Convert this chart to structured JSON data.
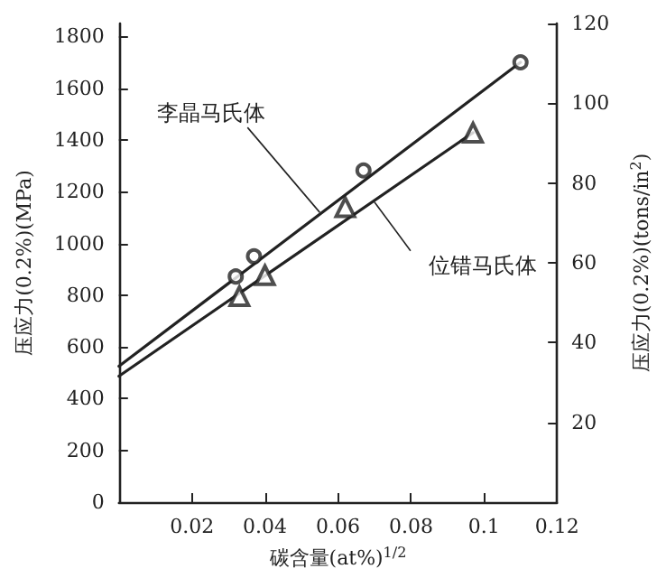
{
  "chart_data": {
    "type": "scatter",
    "xlabel": "碳含量(at%)$^{1/2}$",
    "ylabel": "压应力(0.2%)(MPa)",
    "y2label": "压应力(0.2%)(tons/in$^{2}$)",
    "xlim": [
      0,
      0.12
    ],
    "xticks": [
      0.02,
      0.04,
      0.06,
      0.08,
      0.1,
      0.12
    ],
    "ylim": [
      0,
      1850
    ],
    "yticks": [
      0,
      200,
      400,
      600,
      800,
      1000,
      1200,
      1400,
      1600,
      1800
    ],
    "y2lim": [
      0,
      120
    ],
    "y2ticks": [
      20,
      40,
      60,
      80,
      100,
      120
    ],
    "grid": false,
    "series": [
      {
        "marker": "circle",
        "color": "#222222",
        "x": [
          0.032,
          0.037,
          0.067,
          0.11
        ],
        "values": [
          872,
          950,
          1282,
          1700
        ]
      },
      {
        "type": "line",
        "marker": "none",
        "line_style": "solid",
        "color": "#222222",
        "x": [
          0,
          0.11
        ],
        "values": [
          525,
          1700
        ]
      },
      {
        "marker": "triangle",
        "color": "#222222",
        "x": [
          0.033,
          0.04,
          0.062,
          0.097
        ],
        "values": [
          796,
          877,
          1140,
          1428
        ]
      },
      {
        "type": "line",
        "marker": "none",
        "line_style": "solid",
        "color": "#222222",
        "x": [
          0,
          0.097
        ],
        "values": [
          487,
          1428
        ]
      }
    ],
    "annotations": [
      {
        "text": "李晶马氏体",
        "x": 0.055,
        "y": 1120
      },
      {
        "text": "位错马氏体",
        "x": 0.07,
        "y": 1160
      }
    ]
  }
}
